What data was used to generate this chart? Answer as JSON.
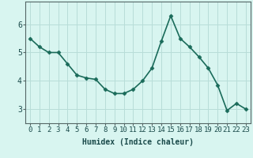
{
  "x": [
    0,
    1,
    2,
    3,
    4,
    5,
    6,
    7,
    8,
    9,
    10,
    11,
    12,
    13,
    14,
    15,
    16,
    17,
    18,
    19,
    20,
    21,
    22,
    23
  ],
  "y": [
    5.5,
    5.2,
    5.0,
    5.0,
    4.6,
    4.2,
    4.1,
    4.05,
    3.7,
    3.55,
    3.55,
    3.7,
    4.0,
    4.45,
    5.4,
    6.3,
    5.5,
    5.2,
    4.85,
    4.45,
    3.85,
    2.95,
    3.2,
    3.0
  ],
  "line_color": "#1a6b5a",
  "marker": "D",
  "marker_size": 2.5,
  "bg_color": "#d8f5f0",
  "grid_color": "#b8ddd8",
  "axis_color": "#556666",
  "ylabel_ticks": [
    3,
    4,
    5,
    6
  ],
  "xlim": [
    -0.5,
    23.5
  ],
  "ylim": [
    2.5,
    6.8
  ],
  "xlabel": "Humidex (Indice chaleur)",
  "xlabel_fontsize": 7,
  "tick_fontsize": 6.5,
  "line_width": 1.2
}
